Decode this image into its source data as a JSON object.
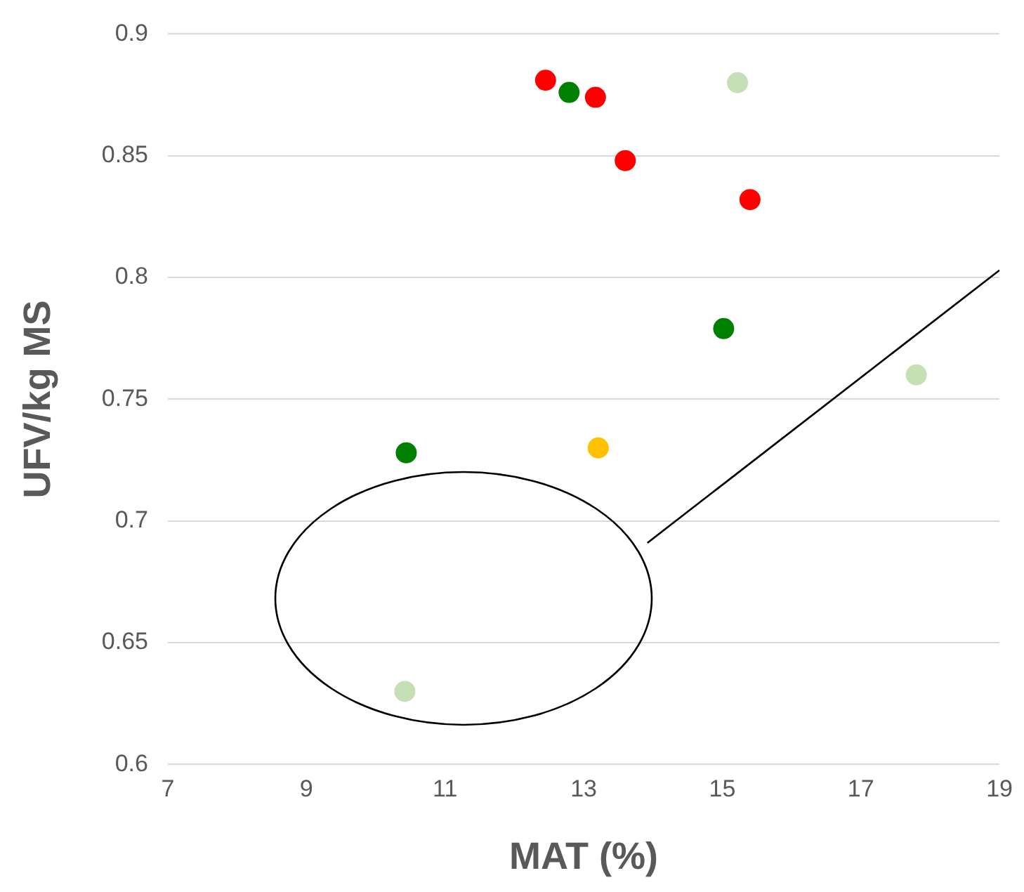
{
  "chart_data": {
    "type": "scatter",
    "xlabel": "MAT (%)",
    "ylabel": "UFV/kg MS",
    "xlim": [
      7,
      19
    ],
    "xticks": [
      7,
      9,
      11,
      13,
      15,
      17,
      19
    ],
    "ylim": [
      0.6,
      0.9
    ],
    "yticks": [
      0.6,
      0.65,
      0.7,
      0.75,
      0.8,
      0.85,
      0.9
    ],
    "grid": "y",
    "marker": "circle",
    "legend": false,
    "series": [
      {
        "color": "#ff0000",
        "x": [
          12.45,
          13.17,
          13.6,
          15.4
        ],
        "values": [
          0.881,
          0.874,
          0.848,
          0.832
        ]
      },
      {
        "color": "#008000",
        "x": [
          12.79,
          15.02,
          10.44
        ],
        "values": [
          0.876,
          0.779,
          0.728
        ]
      },
      {
        "color": "#c5e0b4",
        "x": [
          15.22,
          17.8,
          10.42
        ],
        "values": [
          0.88,
          0.76,
          0.63
        ]
      },
      {
        "color": "#ffc000",
        "x": [
          13.21
        ],
        "values": [
          0.73
        ]
      },
      {
        "type": "line",
        "marker": "none",
        "color": "#000000",
        "x": [
          13.92,
          19
        ],
        "values": [
          0.691,
          0.803
        ]
      }
    ]
  }
}
